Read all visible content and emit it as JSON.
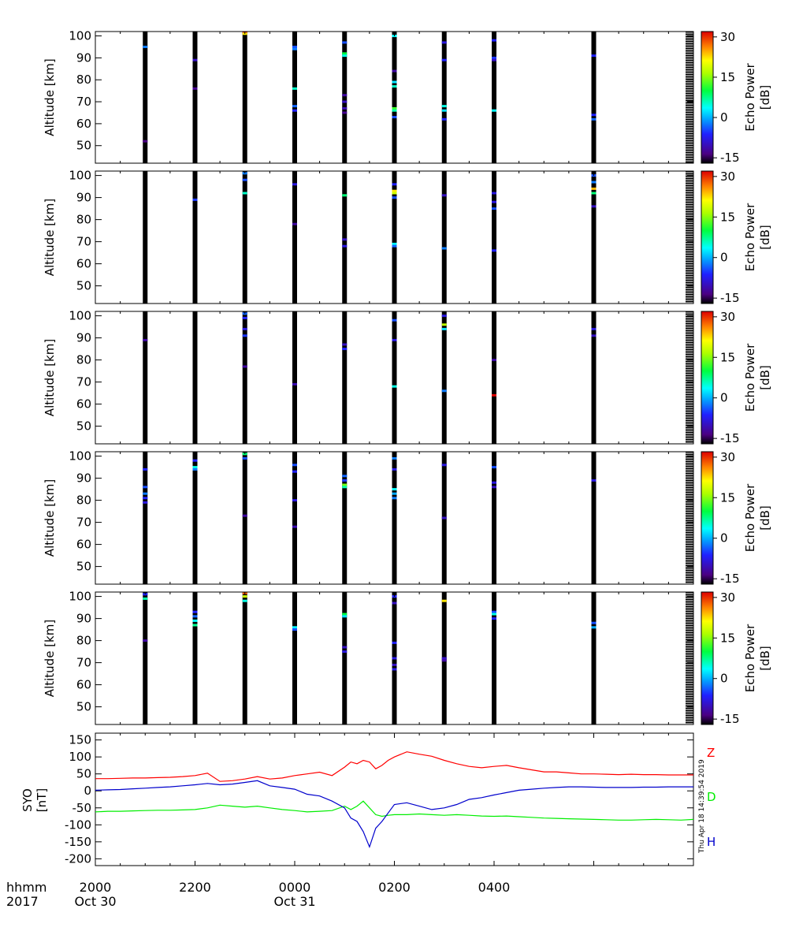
{
  "chart_data": [
    {
      "type": "heatmap",
      "panel": 1,
      "ylabel": "Altitude [km]",
      "ylim": [
        42,
        102
      ],
      "yticks": [
        50,
        60,
        70,
        80,
        90,
        100
      ],
      "colorbar": {
        "label_line1": "Echo Power",
        "label_line2": "[dB]",
        "range": [
          -17,
          32
        ],
        "ticks": [
          -15,
          0,
          15,
          30
        ]
      },
      "echo_layers": [
        {
          "x": 2,
          "alt": 95,
          "db": -2
        },
        {
          "x": 2,
          "alt": 52,
          "db": -14
        },
        {
          "x": 4,
          "alt": 89,
          "db": -10
        },
        {
          "x": 4,
          "alt": 76,
          "db": -13
        },
        {
          "x": 6,
          "alt": 101.5,
          "db": 32
        },
        {
          "x": 6,
          "alt": 101,
          "db": 22
        },
        {
          "x": 8,
          "alt": 95,
          "db": -4
        },
        {
          "x": 8,
          "alt": 94,
          "db": -2
        },
        {
          "x": 8,
          "alt": 76,
          "db": 5
        },
        {
          "x": 8,
          "alt": 68,
          "db": -3
        },
        {
          "x": 8,
          "alt": 66,
          "db": -6
        },
        {
          "x": 10,
          "alt": 97,
          "db": -4
        },
        {
          "x": 10,
          "alt": 92,
          "db": 10
        },
        {
          "x": 10,
          "alt": 91,
          "db": 4
        },
        {
          "x": 10,
          "alt": 73,
          "db": -12
        },
        {
          "x": 10,
          "alt": 70,
          "db": -10
        },
        {
          "x": 10,
          "alt": 67,
          "db": -11
        },
        {
          "x": 10,
          "alt": 65,
          "db": -13
        },
        {
          "x": 12,
          "alt": 100,
          "db": 3
        },
        {
          "x": 12,
          "alt": 84,
          "db": -12
        },
        {
          "x": 12,
          "alt": 79,
          "db": 2
        },
        {
          "x": 12,
          "alt": 77,
          "db": 5
        },
        {
          "x": 12,
          "alt": 67,
          "db": 12
        },
        {
          "x": 12,
          "alt": 66,
          "db": 6
        },
        {
          "x": 12,
          "alt": 63,
          "db": -4
        },
        {
          "x": 14,
          "alt": 97,
          "db": -8
        },
        {
          "x": 14,
          "alt": 89,
          "db": -6
        },
        {
          "x": 14,
          "alt": 68,
          "db": 4
        },
        {
          "x": 14,
          "alt": 66,
          "db": 2
        },
        {
          "x": 14,
          "alt": 62,
          "db": -6
        },
        {
          "x": 16,
          "alt": 98,
          "db": -6
        },
        {
          "x": 16,
          "alt": 90,
          "db": -5
        },
        {
          "x": 16,
          "alt": 89,
          "db": -10
        },
        {
          "x": 16,
          "alt": 66,
          "db": 3
        },
        {
          "x": 20,
          "alt": 91,
          "db": -6
        },
        {
          "x": 20,
          "alt": 64,
          "db": -6
        },
        {
          "x": 20,
          "alt": 62,
          "db": -3
        }
      ]
    },
    {
      "type": "heatmap",
      "panel": 2,
      "ylabel": "Altitude [km]",
      "ylim": [
        42,
        102
      ],
      "yticks": [
        50,
        60,
        70,
        80,
        90,
        100
      ],
      "colorbar": {
        "label_line1": "Echo Power",
        "label_line2": "[dB]",
        "range": [
          -17,
          32
        ],
        "ticks": [
          -15,
          0,
          15,
          30
        ]
      },
      "echo_layers": [
        {
          "x": 4,
          "alt": 89,
          "db": -5
        },
        {
          "x": 6,
          "alt": 101,
          "db": -2
        },
        {
          "x": 6,
          "alt": 98,
          "db": -4
        },
        {
          "x": 6,
          "alt": 92,
          "db": 5
        },
        {
          "x": 8,
          "alt": 96,
          "db": -8
        },
        {
          "x": 8,
          "alt": 78,
          "db": -12
        },
        {
          "x": 10,
          "alt": 91,
          "db": 8
        },
        {
          "x": 10,
          "alt": 71,
          "db": -10
        },
        {
          "x": 10,
          "alt": 68,
          "db": -8
        },
        {
          "x": 12,
          "alt": 96,
          "db": -6
        },
        {
          "x": 12,
          "alt": 93,
          "db": 22
        },
        {
          "x": 12,
          "alt": 92,
          "db": 18
        },
        {
          "x": 12,
          "alt": 90,
          "db": -4
        },
        {
          "x": 12,
          "alt": 69,
          "db": 3
        },
        {
          "x": 12,
          "alt": 68,
          "db": -3
        },
        {
          "x": 14,
          "alt": 91,
          "db": -10
        },
        {
          "x": 14,
          "alt": 67,
          "db": -2
        },
        {
          "x": 16,
          "alt": 92,
          "db": -8
        },
        {
          "x": 16,
          "alt": 88,
          "db": -8
        },
        {
          "x": 16,
          "alt": 85,
          "db": -4
        },
        {
          "x": 16,
          "alt": 66,
          "db": -6
        },
        {
          "x": 20,
          "alt": 100,
          "db": -4
        },
        {
          "x": 20,
          "alt": 97,
          "db": -2
        },
        {
          "x": 20,
          "alt": 94,
          "db": 24
        },
        {
          "x": 20,
          "alt": 92,
          "db": 8
        },
        {
          "x": 20,
          "alt": 86,
          "db": -10
        }
      ]
    },
    {
      "type": "heatmap",
      "panel": 3,
      "ylabel": "Altitude [km]",
      "ylim": [
        42,
        102
      ],
      "yticks": [
        50,
        60,
        70,
        80,
        90,
        100
      ],
      "colorbar": {
        "label_line1": "Echo Power",
        "label_line2": "[dB]",
        "range": [
          -17,
          32
        ],
        "ticks": [
          -15,
          0,
          15,
          30
        ]
      },
      "echo_layers": [
        {
          "x": 2,
          "alt": 89,
          "db": -12
        },
        {
          "x": 6,
          "alt": 101,
          "db": -3
        },
        {
          "x": 6,
          "alt": 99,
          "db": -6
        },
        {
          "x": 6,
          "alt": 94,
          "db": -8
        },
        {
          "x": 6,
          "alt": 91,
          "db": -5
        },
        {
          "x": 6,
          "alt": 77,
          "db": -12
        },
        {
          "x": 8,
          "alt": 69,
          "db": -11
        },
        {
          "x": 10,
          "alt": 87,
          "db": -10
        },
        {
          "x": 10,
          "alt": 85,
          "db": -6
        },
        {
          "x": 12,
          "alt": 98,
          "db": -4
        },
        {
          "x": 12,
          "alt": 89,
          "db": -8
        },
        {
          "x": 12,
          "alt": 68,
          "db": 4
        },
        {
          "x": 14,
          "alt": 100,
          "db": -8
        },
        {
          "x": 14,
          "alt": 96,
          "db": 17
        },
        {
          "x": 14,
          "alt": 94,
          "db": 2
        },
        {
          "x": 14,
          "alt": 66,
          "db": -2
        },
        {
          "x": 16,
          "alt": 80,
          "db": -12
        },
        {
          "x": 16,
          "alt": 64,
          "db": 32
        },
        {
          "x": 20,
          "alt": 94,
          "db": -8
        },
        {
          "x": 20,
          "alt": 91,
          "db": -10
        }
      ]
    },
    {
      "type": "heatmap",
      "panel": 4,
      "ylabel": "Altitude [km]",
      "ylim": [
        42,
        102
      ],
      "yticks": [
        50,
        60,
        70,
        80,
        90,
        100
      ],
      "colorbar": {
        "label_line1": "Echo Power",
        "label_line2": "[dB]",
        "range": [
          -17,
          32
        ],
        "ticks": [
          -15,
          0,
          15,
          30
        ]
      },
      "echo_layers": [
        {
          "x": 2,
          "alt": 94,
          "db": -6
        },
        {
          "x": 2,
          "alt": 86,
          "db": -4
        },
        {
          "x": 2,
          "alt": 83,
          "db": -2
        },
        {
          "x": 2,
          "alt": 81,
          "db": -6
        },
        {
          "x": 2,
          "alt": 79,
          "db": -8
        },
        {
          "x": 4,
          "alt": 98,
          "db": -6
        },
        {
          "x": 4,
          "alt": 95,
          "db": 4
        },
        {
          "x": 4,
          "alt": 94,
          "db": -2
        },
        {
          "x": 6,
          "alt": 101,
          "db": 8
        },
        {
          "x": 6,
          "alt": 99,
          "db": -4
        },
        {
          "x": 6,
          "alt": 73,
          "db": -12
        },
        {
          "x": 8,
          "alt": 96,
          "db": -4
        },
        {
          "x": 8,
          "alt": 93,
          "db": -6
        },
        {
          "x": 8,
          "alt": 80,
          "db": -8
        },
        {
          "x": 8,
          "alt": 68,
          "db": -11
        },
        {
          "x": 10,
          "alt": 91,
          "db": -3
        },
        {
          "x": 10,
          "alt": 89,
          "db": -5
        },
        {
          "x": 10,
          "alt": 87,
          "db": 14
        },
        {
          "x": 10,
          "alt": 86,
          "db": 6
        },
        {
          "x": 12,
          "alt": 99,
          "db": -2
        },
        {
          "x": 12,
          "alt": 94,
          "db": -8
        },
        {
          "x": 12,
          "alt": 85,
          "db": 3
        },
        {
          "x": 12,
          "alt": 83,
          "db": 0
        },
        {
          "x": 12,
          "alt": 81,
          "db": -2
        },
        {
          "x": 14,
          "alt": 96,
          "db": -8
        },
        {
          "x": 14,
          "alt": 72,
          "db": -10
        },
        {
          "x": 16,
          "alt": 95,
          "db": -4
        },
        {
          "x": 16,
          "alt": 88,
          "db": -8
        },
        {
          "x": 16,
          "alt": 86,
          "db": -10
        },
        {
          "x": 20,
          "alt": 89,
          "db": -8
        }
      ]
    },
    {
      "type": "heatmap",
      "panel": 5,
      "ylabel": "Altitude [km]",
      "ylim": [
        42,
        102
      ],
      "yticks": [
        50,
        60,
        70,
        80,
        90,
        100
      ],
      "colorbar": {
        "label_line1": "Echo Power",
        "label_line2": "[dB]",
        "range": [
          -17,
          32
        ],
        "ticks": [
          -15,
          0,
          15,
          30
        ]
      },
      "echo_layers": [
        {
          "x": 2,
          "alt": 101,
          "db": -6
        },
        {
          "x": 2,
          "alt": 99,
          "db": 6
        },
        {
          "x": 2,
          "alt": 80,
          "db": -12
        },
        {
          "x": 4,
          "alt": 93,
          "db": -6
        },
        {
          "x": 4,
          "alt": 91,
          "db": -3
        },
        {
          "x": 4,
          "alt": 89,
          "db": 3
        },
        {
          "x": 4,
          "alt": 87,
          "db": 7
        },
        {
          "x": 6,
          "alt": 101.5,
          "db": 28
        },
        {
          "x": 6,
          "alt": 100,
          "db": 18
        },
        {
          "x": 6,
          "alt": 98,
          "db": 4
        },
        {
          "x": 8,
          "alt": 86,
          "db": 3
        },
        {
          "x": 8,
          "alt": 85,
          "db": -4
        },
        {
          "x": 10,
          "alt": 92,
          "db": 10
        },
        {
          "x": 10,
          "alt": 91,
          "db": 2
        },
        {
          "x": 10,
          "alt": 77,
          "db": -10
        },
        {
          "x": 10,
          "alt": 75,
          "db": -8
        },
        {
          "x": 12,
          "alt": 100,
          "db": -6
        },
        {
          "x": 12,
          "alt": 97,
          "db": -10
        },
        {
          "x": 12,
          "alt": 79,
          "db": -6
        },
        {
          "x": 12,
          "alt": 72,
          "db": -8
        },
        {
          "x": 12,
          "alt": 69,
          "db": -10
        },
        {
          "x": 12,
          "alt": 67,
          "db": -8
        },
        {
          "x": 14,
          "alt": 98,
          "db": 22
        },
        {
          "x": 14,
          "alt": 72,
          "db": -10
        },
        {
          "x": 14,
          "alt": 71,
          "db": -12
        },
        {
          "x": 16,
          "alt": 93,
          "db": -4
        },
        {
          "x": 16,
          "alt": 92,
          "db": 4
        },
        {
          "x": 16,
          "alt": 90,
          "db": -6
        },
        {
          "x": 20,
          "alt": 88,
          "db": -4
        },
        {
          "x": 20,
          "alt": 86,
          "db": 0
        }
      ]
    },
    {
      "type": "line",
      "panel": 6,
      "ylabel_line1": "SYO",
      "ylabel_line2": "[nT]",
      "ylim": [
        -220,
        170
      ],
      "yticks": [
        150,
        100,
        50,
        0,
        -50,
        -100,
        -150,
        -200
      ],
      "xlim": [
        0,
        24
      ],
      "x": [
        0,
        0.5,
        1,
        1.5,
        2,
        2.5,
        3,
        3.5,
        4,
        4.5,
        5,
        5.5,
        6,
        6.5,
        7,
        7.5,
        8,
        8.5,
        9,
        9.5,
        10,
        10.25,
        10.5,
        10.75,
        11,
        11.25,
        11.5,
        11.75,
        12,
        12.5,
        13,
        13.5,
        14,
        14.5,
        15,
        15.5,
        16,
        16.5,
        17,
        17.5,
        18,
        18.5,
        19,
        19.5,
        20,
        20.5,
        21,
        21.5,
        22,
        22.5,
        23,
        23.5,
        24
      ],
      "series": [
        {
          "name": "Z",
          "color": "#ff0000",
          "values": [
            36,
            36,
            37,
            38,
            38,
            39,
            40,
            42,
            45,
            52,
            28,
            30,
            35,
            42,
            35,
            38,
            45,
            50,
            55,
            45,
            70,
            85,
            80,
            90,
            85,
            65,
            75,
            90,
            100,
            115,
            108,
            102,
            90,
            80,
            72,
            68,
            72,
            75,
            68,
            62,
            56,
            56,
            53,
            50,
            50,
            49,
            48,
            49,
            48,
            48,
            47,
            47,
            47
          ]
        },
        {
          "name": "D",
          "color": "#00ee00",
          "values": [
            -62,
            -60,
            -60,
            -59,
            -58,
            -57,
            -57,
            -56,
            -55,
            -50,
            -42,
            -45,
            -48,
            -45,
            -50,
            -55,
            -58,
            -62,
            -60,
            -58,
            -45,
            -55,
            -45,
            -30,
            -50,
            -70,
            -75,
            -72,
            -70,
            -70,
            -68,
            -70,
            -72,
            -70,
            -72,
            -74,
            -75,
            -74,
            -76,
            -78,
            -80,
            -81,
            -82,
            -83,
            -84,
            -85,
            -86,
            -86,
            -85,
            -84,
            -85,
            -86,
            -84
          ]
        },
        {
          "name": "H",
          "color": "#0000cc",
          "values": [
            2,
            3,
            4,
            6,
            8,
            10,
            12,
            15,
            18,
            22,
            18,
            20,
            25,
            30,
            15,
            10,
            5,
            -10,
            -15,
            -30,
            -50,
            -80,
            -90,
            -120,
            -165,
            -110,
            -90,
            -65,
            -40,
            -35,
            -45,
            -55,
            -50,
            -40,
            -25,
            -20,
            -12,
            -5,
            2,
            5,
            8,
            10,
            12,
            12,
            11,
            10,
            10,
            10,
            11,
            11,
            12,
            12,
            12
          ]
        }
      ]
    }
  ],
  "time_axis": {
    "row1_label": "hhmm",
    "row2_label": "2017",
    "ticks": [
      {
        "x": 0,
        "time": "2000",
        "date": "Oct 30"
      },
      {
        "x": 4,
        "time": "2200",
        "date": ""
      },
      {
        "x": 8,
        "time": "0000",
        "date": "Oct 31"
      },
      {
        "x": 12,
        "time": "0200",
        "date": ""
      },
      {
        "x": 16,
        "time": "0400",
        "date": ""
      }
    ]
  },
  "timestamp": "Thu Apr 18 14:39:54 2019"
}
